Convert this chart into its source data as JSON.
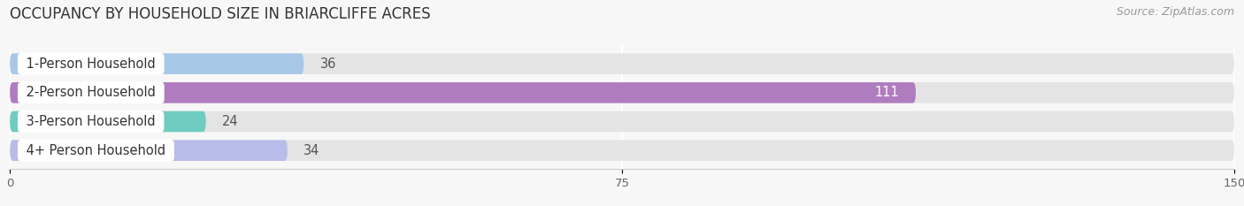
{
  "title": "OCCUPANCY BY HOUSEHOLD SIZE IN BRIARCLIFFE ACRES",
  "source": "Source: ZipAtlas.com",
  "categories": [
    "1-Person Household",
    "2-Person Household",
    "3-Person Household",
    "4+ Person Household"
  ],
  "values": [
    36,
    111,
    24,
    34
  ],
  "bar_colors": [
    "#a8c8e8",
    "#b07cc0",
    "#6eccc0",
    "#b8bce8"
  ],
  "label_colors": [
    "#444444",
    "#ffffff",
    "#444444",
    "#444444"
  ],
  "value_label_colors": [
    "#555555",
    "#ffffff",
    "#555555",
    "#555555"
  ],
  "xlim": [
    0,
    150
  ],
  "xticks": [
    0,
    75,
    150
  ],
  "bg_color": "#f7f7f7",
  "bar_bg_color": "#e4e4e4",
  "title_fontsize": 12,
  "label_fontsize": 10.5,
  "value_fontsize": 10.5,
  "source_fontsize": 9,
  "bar_height": 0.72,
  "bar_gap": 0.28
}
